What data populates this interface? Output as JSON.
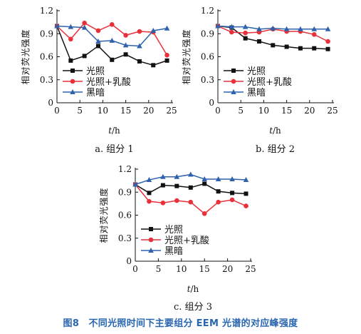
{
  "figure_caption": "图8　不同光照时间下主要组分 EEM 光谱的对应峰强度",
  "colors": {
    "光照": "#111111",
    "光照+乳酸": "#e8313a",
    "黑暗": "#2f62ad"
  },
  "chart_data": [
    {
      "type": "line",
      "caption": "a. 组分 1",
      "ylabel": "相对荧光强度",
      "xlabel_var": "t",
      "xlabel_unit": "/h",
      "xlim": [
        0,
        25
      ],
      "ylim": [
        0,
        1.2
      ],
      "xticks": [
        0,
        5,
        10,
        15,
        20,
        25
      ],
      "xtick_labels": [
        "0",
        "5",
        "10",
        "15",
        "20",
        "25"
      ],
      "yticks": [
        0,
        0.3,
        0.6,
        0.9,
        1.2
      ],
      "ytick_labels": [
        "0",
        "0.3",
        "0.6",
        "0.9",
        "1.2"
      ],
      "legend_position": "bottom-left",
      "series": [
        {
          "name": "光照",
          "marker": "square",
          "color": "#111111",
          "x": [
            0,
            3,
            6,
            9,
            12,
            15,
            18,
            21,
            24
          ],
          "y": [
            1.0,
            0.55,
            0.61,
            0.74,
            0.56,
            0.63,
            0.54,
            0.49,
            0.55
          ]
        },
        {
          "name": "光照+乳酸",
          "marker": "circle",
          "color": "#e8313a",
          "x": [
            0,
            3,
            6,
            9,
            12,
            15,
            18,
            21,
            24
          ],
          "y": [
            1.0,
            0.83,
            1.04,
            0.94,
            1.02,
            0.88,
            0.93,
            0.92,
            0.62
          ]
        },
        {
          "name": "黑暗",
          "marker": "triangle",
          "color": "#2f62ad",
          "x": [
            0,
            3,
            6,
            9,
            12,
            15,
            18,
            21,
            24
          ],
          "y": [
            1.0,
            0.99,
            0.98,
            0.8,
            0.81,
            0.75,
            0.74,
            0.94,
            0.97
          ]
        }
      ]
    },
    {
      "type": "line",
      "caption": "b. 组分 2",
      "ylabel": "相对荧光强度",
      "xlabel_var": "t",
      "xlabel_unit": "/h",
      "xlim": [
        0,
        25
      ],
      "ylim": [
        0,
        1.2
      ],
      "xticks": [
        0,
        5,
        10,
        15,
        20,
        25
      ],
      "xtick_labels": [
        "0",
        "5",
        "10",
        "15",
        "20",
        "25"
      ],
      "yticks": [
        0,
        0.3,
        0.6,
        0.9,
        1.2
      ],
      "ytick_labels": [
        "0",
        "0.3",
        "0.6",
        "0.9",
        "1.2"
      ],
      "legend_position": "bottom-left",
      "series": [
        {
          "name": "光照",
          "marker": "square",
          "color": "#111111",
          "x": [
            0,
            3,
            6,
            9,
            12,
            15,
            18,
            21,
            24
          ],
          "y": [
            1.0,
            0.98,
            0.84,
            0.8,
            0.75,
            0.73,
            0.71,
            0.71,
            0.7
          ]
        },
        {
          "name": "光照+乳酸",
          "marker": "circle",
          "color": "#e8313a",
          "x": [
            0,
            3,
            6,
            9,
            12,
            15,
            18,
            21,
            24
          ],
          "y": [
            1.0,
            0.92,
            0.91,
            0.92,
            0.96,
            0.93,
            0.93,
            0.89,
            0.8
          ]
        },
        {
          "name": "黑暗",
          "marker": "triangle",
          "color": "#2f62ad",
          "x": [
            0,
            3,
            6,
            9,
            12,
            15,
            18,
            21,
            24
          ],
          "y": [
            1.0,
            0.99,
            0.99,
            0.96,
            0.97,
            0.96,
            0.96,
            0.96,
            0.96
          ]
        }
      ]
    },
    {
      "type": "line",
      "caption": "c. 组分 3",
      "ylabel": "相对荧光强度",
      "xlabel_var": "t",
      "xlabel_unit": "/h",
      "xlim": [
        0,
        25
      ],
      "ylim": [
        0,
        1.2
      ],
      "xticks": [
        0,
        5,
        10,
        15,
        20,
        25
      ],
      "xtick_labels": [
        "0",
        "5",
        "10",
        "15",
        "20",
        "25"
      ],
      "yticks": [
        0,
        0.3,
        0.6,
        0.9,
        1.2
      ],
      "ytick_labels": [
        "0",
        "0.3",
        "0.6",
        "0.9",
        "1.2"
      ],
      "legend_position": "bottom-left",
      "series": [
        {
          "name": "光照",
          "marker": "square",
          "color": "#111111",
          "x": [
            0,
            3,
            6,
            9,
            12,
            15,
            18,
            21,
            24
          ],
          "y": [
            1.0,
            0.89,
            0.99,
            0.98,
            0.96,
            1.01,
            0.91,
            0.89,
            0.88
          ]
        },
        {
          "name": "光照+乳酸",
          "marker": "circle",
          "color": "#e8313a",
          "x": [
            0,
            3,
            6,
            9,
            12,
            15,
            18,
            21,
            24
          ],
          "y": [
            1.0,
            0.78,
            0.76,
            0.79,
            0.77,
            0.62,
            0.77,
            0.8,
            0.72
          ]
        },
        {
          "name": "黑暗",
          "marker": "triangle",
          "color": "#2f62ad",
          "x": [
            0,
            3,
            6,
            9,
            12,
            15,
            18,
            21,
            24
          ],
          "y": [
            1.0,
            1.06,
            1.1,
            1.1,
            1.13,
            1.07,
            1.07,
            1.07,
            1.06
          ]
        }
      ]
    }
  ]
}
